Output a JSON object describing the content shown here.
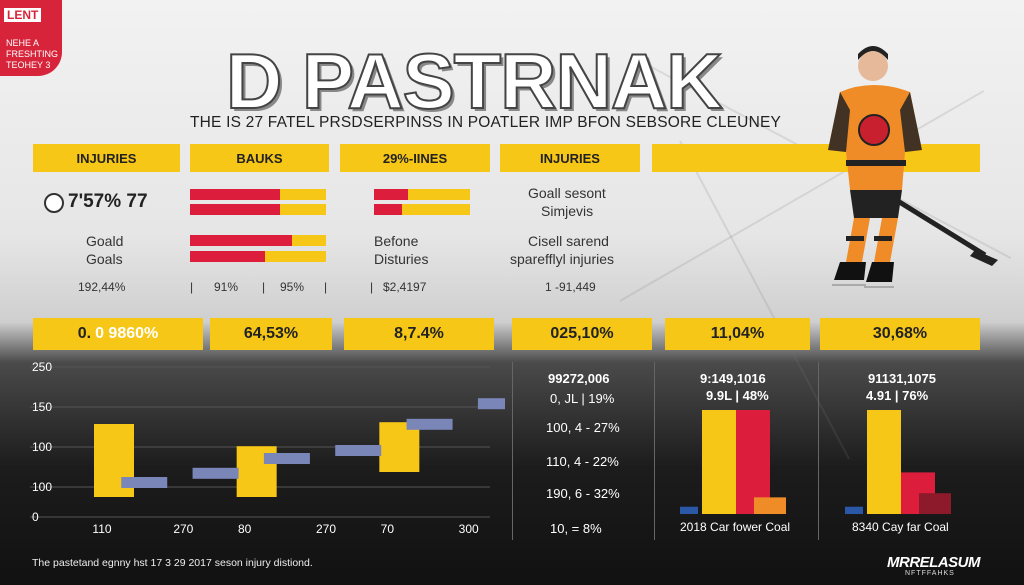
{
  "badge": {
    "line1": "LENT",
    "line2": "NEHE A FRESHTING TEOHEY 3"
  },
  "title": "D PASTRNAK",
  "subtitle": "THE IS 27 FATEL PRSDSERPINSS IN POATLER IMP BFON SEBSORE CLEUNEY",
  "headers": [
    "INJURIES",
    "BAUKS",
    "29%-IINES",
    "INJURIES"
  ],
  "stats": {
    "main_value": "7'57% 77",
    "goal_label": "Goald",
    "goals_label": "Goals",
    "row_pct": "192,44%",
    "bauks_pct1": "91%",
    "bauks_pct2": "95%",
    "bauks_sep": "|",
    "lines_label1": "Befone",
    "lines_label2": "Disturies",
    "lines_value": "$2,4197",
    "inj_line1": "Goall sesont",
    "inj_line2": "Simjevis",
    "inj_line3": "Cisell sarend",
    "inj_line4": "sparefflyl injuries",
    "inj_value": "1 -91,449"
  },
  "yellow_boxes": {
    "box1_prefix": "0.",
    "box1_value": "0 9860%",
    "box2_value": "64,53%",
    "box3_value": "8,7.4%",
    "box4_value": "025,10%",
    "box5_value": "11,04%",
    "box6_value": "30,68%"
  },
  "list_col": [
    "99272,006",
    "0, JL | 19%",
    "100, 4 - 27%",
    "110, 4 - 22%",
    "190, 6 - 32%",
    "10, = 8%"
  ],
  "panel2": {
    "line1": "9:149,1016",
    "line2": "9.9L | 48%",
    "caption": "2018 Car fower Coal"
  },
  "panel3": {
    "line1": "91131,1075",
    "line2": "4.91 | 76%",
    "caption": "8340 Cay far Coal"
  },
  "footer": "The pastetand egnny hst 17 3 29 2017 seson injury distiond.",
  "brand": "MRRELASUM",
  "brand_sub": "NFTFFAHKS",
  "colors": {
    "yellow": "#f6c717",
    "red": "#dc1e3c",
    "blue": "#7b86b8",
    "orange": "#f08c28"
  },
  "chart_data": [
    {
      "type": "bar",
      "ylim": [
        0,
        250
      ],
      "y_ticks": [
        "250",
        "150",
        "100",
        "100",
        "0"
      ],
      "x_ticks": [
        "110",
        "270",
        "80",
        "270",
        "70",
        "300"
      ],
      "series": [
        {
          "values": [
            155,
            118,
            158
          ]
        },
        {
          "values": [
            20,
            42,
            60,
            80,
            117,
            158
          ]
        }
      ]
    },
    {
      "type": "bar",
      "series": [
        {
          "values": [
            0.07,
            1.0,
            1.0,
            0.16
          ]
        }
      ]
    },
    {
      "type": "bar",
      "series": [
        {
          "values": [
            0.07,
            1.0,
            0.4,
            0.2
          ]
        }
      ]
    }
  ]
}
